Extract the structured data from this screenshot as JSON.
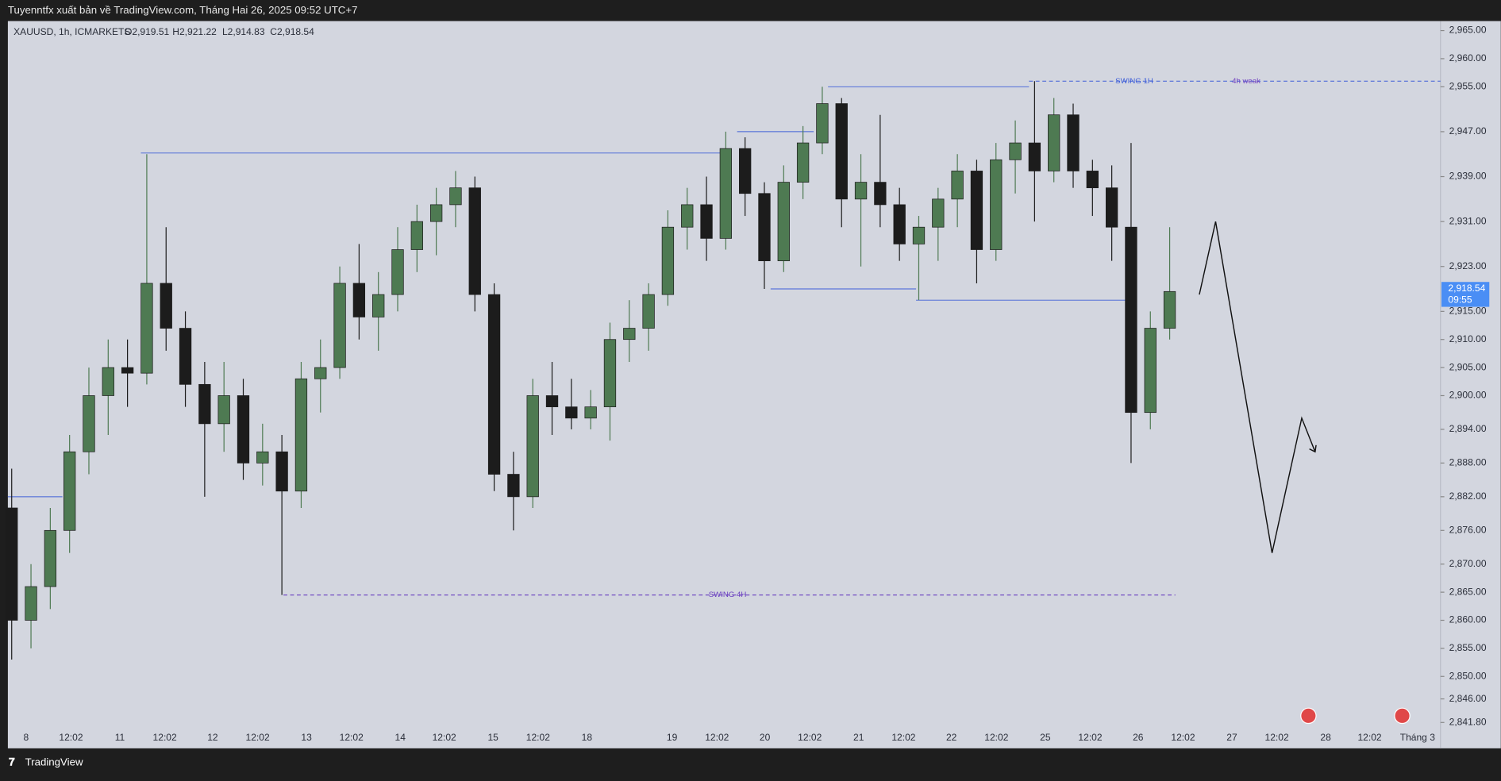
{
  "header": {
    "title": "Tuyenntfx xuất bản về TradingView.com, Tháng Hai 26, 2025 09:52 UTC+7"
  },
  "footer": {
    "brand": "TradingView"
  },
  "chart_data": {
    "type": "candlestick",
    "legend": {
      "symbol": "XAUUSD, 1h, ICMARKETS",
      "open": "O2,919.51",
      "high": "H2,921.22",
      "low": "L2,914.83",
      "close": "C2,918.54"
    },
    "last_price": {
      "value": 2918.54,
      "label": "2,918.54",
      "countdown": "09:55"
    },
    "up_color": "#4e7a52",
    "down_color": "#1c1c1c",
    "ylim": [
      2837.2,
      2966.7
    ],
    "yticks": [
      {
        "value": 2965,
        "label": "2,965.00"
      },
      {
        "value": 2960,
        "label": "2,960.00"
      },
      {
        "value": 2955,
        "label": "2,955.00"
      },
      {
        "value": 2947,
        "label": "2,947.00"
      },
      {
        "value": 2939,
        "label": "2,939.00"
      },
      {
        "value": 2931,
        "label": "2,931.00"
      },
      {
        "value": 2923,
        "label": "2,923.00"
      },
      {
        "value": 2915,
        "label": "2,915.00"
      },
      {
        "value": 2910,
        "label": "2,910.00"
      },
      {
        "value": 2905,
        "label": "2,905.00"
      },
      {
        "value": 2900,
        "label": "2,900.00"
      },
      {
        "value": 2894,
        "label": "2,894.00"
      },
      {
        "value": 2888,
        "label": "2,888.00"
      },
      {
        "value": 2882,
        "label": "2,882.00"
      },
      {
        "value": 2876,
        "label": "2,876.00"
      },
      {
        "value": 2870,
        "label": "2,870.00"
      },
      {
        "value": 2865,
        "label": "2,865.00"
      },
      {
        "value": 2860,
        "label": "2,860.00"
      },
      {
        "value": 2855,
        "label": "2,855.00"
      },
      {
        "value": 2850,
        "label": "2,850.00"
      },
      {
        "value": 2846,
        "label": "2,846.00"
      },
      {
        "value": 2841.8,
        "label": "2,841.80"
      }
    ],
    "x_labels": [
      "8",
      "12:02",
      "11",
      "12:02",
      "12",
      "12:02",
      "13",
      "12:02",
      "14",
      "12:02",
      "15",
      "12:02",
      "18",
      "19",
      "12:02",
      "20",
      "12:02",
      "21",
      "12:02",
      "22",
      "12:02",
      "25",
      "12:02",
      "26",
      "12:02",
      "27",
      "12:02",
      "28",
      "12:02",
      "Tháng 3"
    ],
    "ohlc": [
      [
        2880,
        2887,
        2853,
        2860
      ],
      [
        2860,
        2870,
        2855,
        2866
      ],
      [
        2866,
        2880,
        2862,
        2876
      ],
      [
        2876,
        2893,
        2872,
        2890
      ],
      [
        2890,
        2905,
        2886,
        2900
      ],
      [
        2900,
        2910,
        2893,
        2905
      ],
      [
        2905,
        2910,
        2898,
        2904
      ],
      [
        2904,
        2943,
        2902,
        2920
      ],
      [
        2920,
        2930,
        2908,
        2912
      ],
      [
        2912,
        2915,
        2898,
        2902
      ],
      [
        2902,
        2906,
        2882,
        2895
      ],
      [
        2895,
        2906,
        2890,
        2900
      ],
      [
        2900,
        2903,
        2885,
        2888
      ],
      [
        2888,
        2895,
        2884,
        2890
      ],
      [
        2890,
        2893,
        2864.5,
        2883
      ],
      [
        2883,
        2906,
        2880,
        2903
      ],
      [
        2903,
        2910,
        2897,
        2905
      ],
      [
        2905,
        2923,
        2903,
        2920
      ],
      [
        2920,
        2927,
        2910,
        2914
      ],
      [
        2914,
        2922,
        2908,
        2918
      ],
      [
        2918,
        2930,
        2915,
        2926
      ],
      [
        2926,
        2934,
        2922,
        2931
      ],
      [
        2931,
        2937,
        2925,
        2934
      ],
      [
        2934,
        2940,
        2930,
        2937
      ],
      [
        2937,
        2939,
        2915,
        2918
      ],
      [
        2918,
        2920,
        2883,
        2886
      ],
      [
        2886,
        2890,
        2876,
        2882
      ],
      [
        2882,
        2903,
        2880,
        2900
      ],
      [
        2900,
        2906,
        2893,
        2898
      ],
      [
        2898,
        2903,
        2894,
        2896
      ],
      [
        2896,
        2901,
        2894,
        2898
      ],
      [
        2898,
        2913,
        2892,
        2910
      ],
      [
        2910,
        2917,
        2906,
        2912
      ],
      [
        2912,
        2920,
        2908,
        2918
      ],
      [
        2918,
        2933,
        2916,
        2930
      ],
      [
        2930,
        2937,
        2926,
        2934
      ],
      [
        2934,
        2939,
        2924,
        2928
      ],
      [
        2928,
        2947,
        2926,
        2944
      ],
      [
        2944,
        2946,
        2932,
        2936
      ],
      [
        2936,
        2938,
        2919,
        2924
      ],
      [
        2924,
        2941,
        2922,
        2938
      ],
      [
        2938,
        2948,
        2935,
        2945
      ],
      [
        2945,
        2955,
        2943,
        2952
      ],
      [
        2952,
        2953,
        2930,
        2935
      ],
      [
        2935,
        2943,
        2923,
        2938
      ],
      [
        2938,
        2950,
        2930,
        2934
      ],
      [
        2934,
        2937,
        2924,
        2927
      ],
      [
        2927,
        2932,
        2917,
        2930
      ],
      [
        2930,
        2937,
        2924,
        2935
      ],
      [
        2935,
        2943,
        2930,
        2940
      ],
      [
        2940,
        2942,
        2920,
        2926
      ],
      [
        2926,
        2945,
        2924,
        2942
      ],
      [
        2942,
        2949,
        2936,
        2945
      ],
      [
        2945,
        2956,
        2931,
        2940
      ],
      [
        2940,
        2953,
        2938,
        2950
      ],
      [
        2950,
        2952,
        2937,
        2940
      ],
      [
        2940,
        2942,
        2932,
        2937
      ],
      [
        2937,
        2941,
        2924,
        2930
      ],
      [
        2930,
        2945,
        2888,
        2897
      ],
      [
        2897,
        2915,
        2894,
        2912
      ],
      [
        2912,
        2930,
        2910,
        2918.54
      ]
    ],
    "levels": [
      2943.2,
      2947,
      2955,
      2919,
      2917,
      2882
    ],
    "annotations": [
      {
        "text": "SWING 1H",
        "value": 2956
      },
      {
        "text": "4h weak",
        "value": 2956
      },
      {
        "text": "SWING 4H",
        "value": 2864.5
      }
    ],
    "projection": [
      2918,
      2931,
      2872,
      2896,
      2890
    ]
  }
}
